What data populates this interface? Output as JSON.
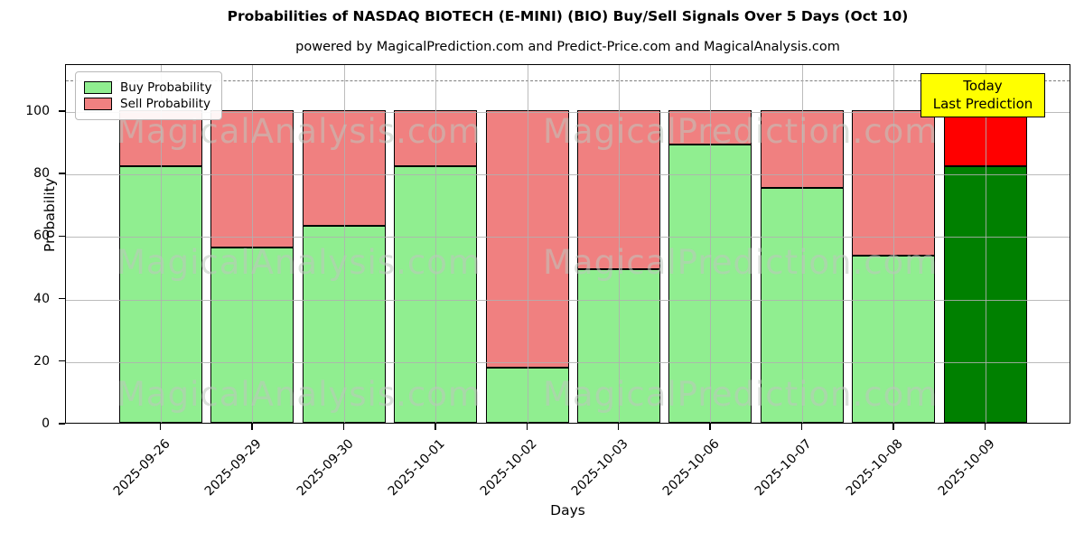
{
  "figure": {
    "title": "Probabilities of NASDAQ BIOTECH (E-MINI) (BIO) Buy/Sell Signals Over 5 Days (Oct 10)",
    "subtitle": "powered by MagicalPrediction.com and Predict-Price.com and MagicalAnalysis.com"
  },
  "chart_data": {
    "type": "bar",
    "stacked": true,
    "title": "Probabilities of NASDAQ BIOTECH (E-MINI) (BIO) Buy/Sell Signals Over 5 Days (Oct 10)",
    "subtitle": "powered by MagicalPrediction.com and Predict-Price.com and MagicalAnalysis.com",
    "xlabel": "Days",
    "ylabel": "Probability",
    "ylim": [
      0,
      115
    ],
    "yticks": [
      0,
      20,
      40,
      60,
      80,
      100
    ],
    "grid": true,
    "dashed_line_y": 110,
    "categories": [
      "2025-09-26",
      "2025-09-29",
      "2025-09-30",
      "2025-10-01",
      "2025-10-02",
      "2025-10-03",
      "2025-10-06",
      "2025-10-07",
      "2025-10-08",
      "2025-10-09"
    ],
    "series": [
      {
        "name": "Buy Probability",
        "color": "#90ee90",
        "values": [
          82,
          56,
          63,
          82,
          17.5,
          49,
          89,
          75,
          53.5,
          82
        ]
      },
      {
        "name": "Sell Probability",
        "color": "#f08080",
        "values": [
          18,
          44,
          37,
          18,
          82.5,
          51,
          11,
          25,
          46.5,
          16
        ]
      }
    ],
    "today_bar": {
      "index": 9,
      "buy_color": "#008000",
      "sell_color": "#ff0000"
    },
    "legend": {
      "position": "upper-left",
      "entries": [
        {
          "label": "Buy Probability",
          "color": "#90ee90"
        },
        {
          "label": "Sell Probability",
          "color": "#f08080"
        }
      ]
    },
    "annotation": {
      "lines": [
        "Today",
        "Last Prediction"
      ],
      "bg_color": "#ffff00",
      "border_color": "#000000"
    },
    "watermarks": {
      "left_text": "MagicalAnalysis.com",
      "right_text": "MagicalPrediction.com",
      "row_centers_y_value": [
        92.5,
        50.5,
        8.5
      ]
    },
    "bar_edge_color": "#000000"
  }
}
